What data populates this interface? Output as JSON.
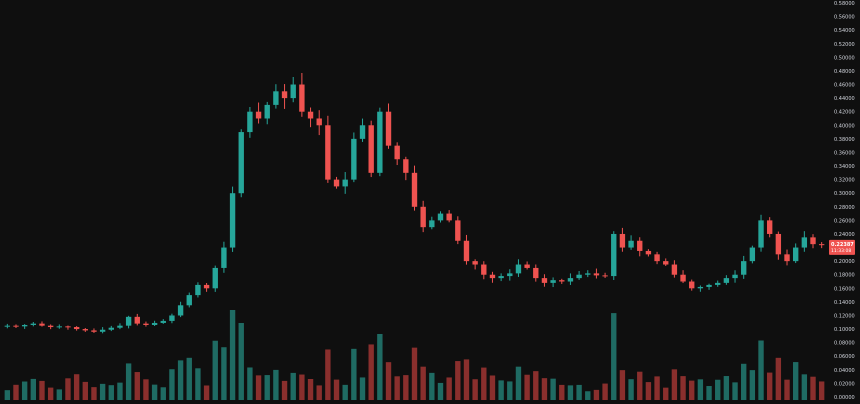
{
  "colors": {
    "background": "#0f0f0f",
    "up": "#26a69a",
    "down": "#ef5350",
    "up_volume": "#1f6b63",
    "down_volume": "#8a2f2d",
    "axis_text": "#d1d4dc",
    "price_tag": "#ef5350"
  },
  "chart_data": {
    "type": "candlestick",
    "title": "",
    "xlabel": "",
    "ylabel": "",
    "ylim": [
      0.0,
      0.58
    ],
    "grid": false,
    "y_ticks": [
      "0.00000",
      "0.02000",
      "0.04000",
      "0.06000",
      "0.08000",
      "0.10000",
      "0.12000",
      "0.14000",
      "0.16000",
      "0.18000",
      "0.20000",
      "0.22000",
      "0.24000",
      "0.26000",
      "0.28000",
      "0.30000",
      "0.32000",
      "0.34000",
      "0.36000",
      "0.38000",
      "0.40000",
      "0.42000",
      "0.44000",
      "0.46000",
      "0.48000",
      "0.50000",
      "0.52000",
      "0.54000",
      "0.56000",
      "0.58000"
    ],
    "last_price": {
      "value": "0.22387",
      "countdown": "11:33:08"
    },
    "close_series": [
      0.105,
      0.104,
      0.106,
      0.108,
      0.105,
      0.103,
      0.104,
      0.103,
      0.1,
      0.098,
      0.096,
      0.099,
      0.102,
      0.105,
      0.118,
      0.108,
      0.106,
      0.109,
      0.112,
      0.12,
      0.135,
      0.15,
      0.165,
      0.16,
      0.19,
      0.22,
      0.3,
      0.39,
      0.42,
      0.41,
      0.43,
      0.45,
      0.44,
      0.46,
      0.42,
      0.41,
      0.4,
      0.32,
      0.31,
      0.32,
      0.38,
      0.4,
      0.33,
      0.42,
      0.37,
      0.35,
      0.33,
      0.28,
      0.25,
      0.26,
      0.27,
      0.26,
      0.23,
      0.2,
      0.195,
      0.18,
      0.175,
      0.178,
      0.182,
      0.195,
      0.19,
      0.175,
      0.168,
      0.172,
      0.17,
      0.175,
      0.18,
      0.182,
      0.179,
      0.178,
      0.24,
      0.22,
      0.23,
      0.215,
      0.21,
      0.2,
      0.195,
      0.18,
      0.17,
      0.16,
      0.162,
      0.165,
      0.168,
      0.175,
      0.18,
      0.2,
      0.22,
      0.26,
      0.24,
      0.21,
      0.2,
      0.22,
      0.235,
      0.225,
      0.224
    ]
  }
}
